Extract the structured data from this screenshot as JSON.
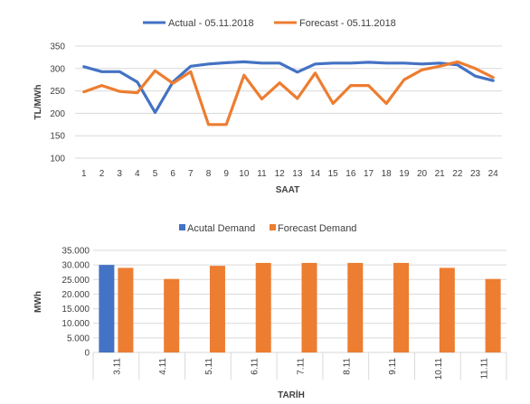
{
  "chart_data": [
    {
      "type": "line",
      "x": [
        1,
        2,
        3,
        4,
        5,
        6,
        7,
        8,
        9,
        10,
        11,
        12,
        13,
        14,
        15,
        16,
        17,
        18,
        19,
        20,
        21,
        22,
        23,
        24
      ],
      "series": [
        {
          "name": "Actual - 05.11.2018",
          "color": "#4472C4",
          "values": [
            304,
            293,
            293,
            270,
            202,
            270,
            305,
            310,
            313,
            315,
            312,
            312,
            292,
            310,
            312,
            312,
            314,
            312,
            312,
            310,
            312,
            308,
            283,
            273
          ]
        },
        {
          "name": "Forecast - 05.11.2018",
          "color": "#ED7D31",
          "values": [
            248,
            262,
            249,
            246,
            295,
            267,
            293,
            175,
            175,
            285,
            232,
            268,
            233,
            290,
            222,
            262,
            262,
            222,
            275,
            297,
            305,
            315,
            300,
            280
          ]
        }
      ],
      "title": "",
      "xlabel": "SAAT",
      "ylabel": "TL/MWh",
      "ylim": [
        100,
        350
      ],
      "yticks": [
        "100",
        "150",
        "200",
        "250",
        "300",
        "350"
      ],
      "grid": true,
      "legend": "top-center"
    },
    {
      "type": "bar",
      "categories": [
        "3.11",
        "4.11",
        "5.11",
        "6.11",
        "7.11",
        "8.11",
        "9.11",
        "10.11",
        "11.11"
      ],
      "series": [
        {
          "name": "Acutal Demand",
          "color": "#4472C4",
          "values": [
            30000,
            null,
            null,
            null,
            null,
            null,
            null,
            null,
            null
          ]
        },
        {
          "name": "Forecast Demand",
          "color": "#ED7D31",
          "values": [
            29000,
            25200,
            29700,
            30700,
            30700,
            30700,
            30700,
            29000,
            25200
          ]
        }
      ],
      "title": "",
      "xlabel": "TARİH",
      "ylabel": "MWh",
      "ylim": [
        0,
        35000
      ],
      "yticks": [
        "0",
        "5.000",
        "10.000",
        "15.000",
        "20.000",
        "25.000",
        "30.000",
        "35.000"
      ],
      "grid": true,
      "legend": "top-center"
    }
  ]
}
